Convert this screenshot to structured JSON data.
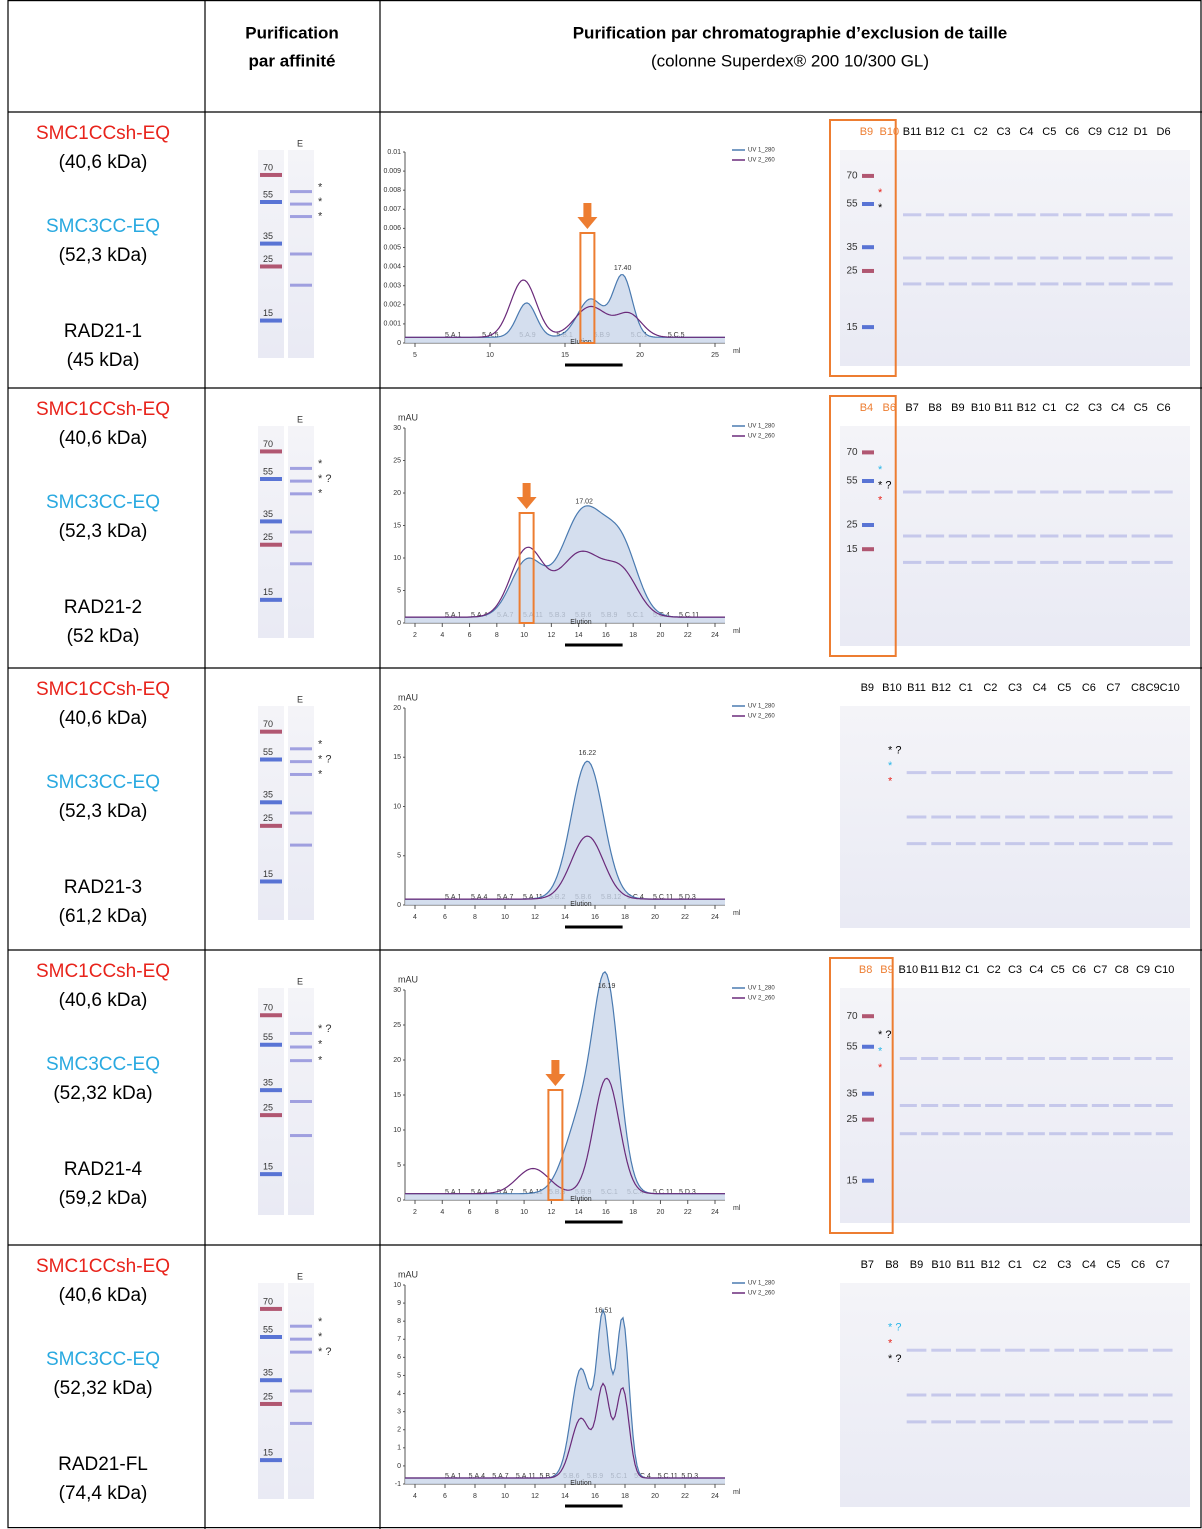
{
  "header": {
    "col2": [
      "Purification",
      "par affinité"
    ],
    "col3_title": "Purification par chromatographie d’exclusion de taille",
    "col3_subtitle": "(colonne Superdex® 200 10/300 GL)"
  },
  "rows": [
    {
      "proteins": [
        {
          "name": "SMC1CCsh-EQ",
          "kda": "(40,6 kDa)",
          "color": "#e8231b"
        },
        {
          "name": "SMC3CC-EQ",
          "kda": "(52,3 kDa)",
          "color": "#29a9e0"
        },
        {
          "name": "RAD21-1",
          "kda": "(45 kDa)",
          "color": "#000000"
        }
      ],
      "affinity": {
        "lane": "E",
        "markers": [
          "70",
          "55",
          "35",
          "25",
          "15"
        ],
        "annotations": [
          {
            "text": "*",
            "color": "#29b6e8"
          },
          {
            "text": "*",
            "color": "#e8231b"
          },
          {
            "text": "*",
            "color": "#000000"
          }
        ]
      },
      "chromatogram": {
        "yticks": [
          "0",
          "0.001",
          "0.002",
          "0.003",
          "0.004",
          "0.005",
          "0.006",
          "0.007",
          "0.008",
          "0.009",
          "0.01"
        ],
        "xticks": [
          "5",
          "10",
          "15",
          "20",
          "25"
        ],
        "xunit": "ml",
        "peak": "17.40",
        "fraction_label": "Elution",
        "fractions": [
          "5.A.1",
          "5.A.5",
          "5.A.9",
          "5.B.1",
          "5.B.9",
          "5.C.1",
          "5.C.5"
        ],
        "legend": [
          "UV 1_280",
          "UV 2_260"
        ]
      },
      "sec": {
        "lanes": [
          "B9",
          "B10",
          "B11",
          "B12",
          "C1",
          "C2",
          "C3",
          "C4",
          "C5",
          "C6",
          "C9",
          "C12",
          "D1",
          "D6"
        ],
        "selected": [
          0,
          1
        ],
        "markers": [
          "70",
          "55",
          "35",
          "25",
          "15"
        ],
        "annotations": [
          {
            "text": "*",
            "color": "#e8231b"
          },
          {
            "text": "*",
            "color": "#000000"
          }
        ]
      }
    },
    {
      "proteins": [
        {
          "name": "SMC1CCsh-EQ",
          "kda": "(40,6 kDa)",
          "color": "#e8231b"
        },
        {
          "name": "SMC3CC-EQ",
          "kda": "(52,3 kDa)",
          "color": "#29a9e0"
        },
        {
          "name": "RAD21-2",
          "kda": "(52 kDa)",
          "color": "#000000"
        }
      ],
      "affinity": {
        "lane": "E",
        "markers": [
          "70",
          "55",
          "35",
          "25",
          "15"
        ],
        "annotations": [
          {
            "text": "*",
            "color": "#29b6e8"
          },
          {
            "text": "* ?",
            "color": "#000000"
          },
          {
            "text": "*",
            "color": "#e8231b"
          }
        ]
      },
      "chromatogram": {
        "ylabel": "mAU",
        "yticks": [
          "0",
          "5",
          "10",
          "15",
          "20",
          "25",
          "30"
        ],
        "xticks": [
          "2",
          "4",
          "6",
          "8",
          "10",
          "12",
          "14",
          "16",
          "18",
          "20",
          "22",
          "24"
        ],
        "xunit": "ml",
        "peak": "17.02",
        "fraction_label": "Elution",
        "fractions": [
          "5.A.1",
          "5.A.4",
          "5.A.7",
          "5.A.11",
          "5.B.3",
          "5.B.6",
          "5.B.9",
          "5.C.1",
          "5.C.4",
          "5.C.11"
        ],
        "legend": [
          "UV 1_280",
          "UV 2_260"
        ]
      },
      "sec": {
        "lanes": [
          "B4",
          "B6",
          "B7",
          "B8",
          "B9",
          "B10",
          "B11",
          "B12",
          "C1",
          "C2",
          "C3",
          "C4",
          "C5",
          "C6"
        ],
        "selected": [
          0,
          1
        ],
        "markers": [
          "70",
          "55",
          "25",
          "15"
        ],
        "annotations": [
          {
            "text": "*",
            "color": "#29b6e8"
          },
          {
            "text": "* ?",
            "color": "#000000"
          },
          {
            "text": "*",
            "color": "#e8231b"
          }
        ]
      }
    },
    {
      "proteins": [
        {
          "name": "SMC1CCsh-EQ",
          "kda": "(40,6 kDa)",
          "color": "#e8231b"
        },
        {
          "name": "SMC3CC-EQ",
          "kda": "(52,3 kDa)",
          "color": "#29a9e0"
        },
        {
          "name": "RAD21-3",
          "kda": "(61,2 kDa)",
          "color": "#000000"
        }
      ],
      "affinity": {
        "lane": "E",
        "markers": [
          "70",
          "55",
          "35",
          "25",
          "15"
        ],
        "annotations": [
          {
            "text": "*",
            "color": "#29b6e8"
          },
          {
            "text": "* ?",
            "color": "#000000"
          },
          {
            "text": "*",
            "color": "#e8231b"
          }
        ]
      },
      "chromatogram": {
        "ylabel": "mAU",
        "yticks": [
          "0",
          "5",
          "10",
          "15",
          "20"
        ],
        "xticks": [
          "4",
          "6",
          "8",
          "10",
          "12",
          "14",
          "16",
          "18",
          "20",
          "22",
          "24"
        ],
        "xunit": "ml",
        "peak": "16.22",
        "fraction_label": "Elution",
        "fractions": [
          "5.A.1",
          "5.A.4",
          "5.A.7",
          "5.A.11",
          "5.B.2",
          "5.B.6",
          "5.B.12",
          "5.C.4",
          "5.C.11",
          "5.D.3"
        ],
        "legend": [
          "UV 1_280",
          "UV 2_260"
        ]
      },
      "sec": {
        "lanes": [
          "B9",
          "B10",
          "B11",
          "B12",
          "C1",
          "C2",
          "C3",
          "C4",
          "C5",
          "C6",
          "C7",
          "C8",
          "C9C10"
        ],
        "selected": [],
        "markers": [],
        "annotations": [
          {
            "text": "* ?",
            "color": "#000000"
          },
          {
            "text": "*",
            "color": "#29b6e8"
          },
          {
            "text": "*",
            "color": "#e8231b"
          }
        ]
      }
    },
    {
      "proteins": [
        {
          "name": "SMC1CCsh-EQ",
          "kda": "(40,6 kDa)",
          "color": "#e8231b"
        },
        {
          "name": "SMC3CC-EQ",
          "kda": "(52,32 kDa)",
          "color": "#29a9e0"
        },
        {
          "name": "RAD21-4",
          "kda": "(59,2 kDa)",
          "color": "#000000"
        }
      ],
      "affinity": {
        "lane": "E",
        "markers": [
          "70",
          "55",
          "35",
          "25",
          "15"
        ],
        "annotations": [
          {
            "text": "* ?",
            "color": "#000000"
          },
          {
            "text": "*",
            "color": "#29b6e8"
          },
          {
            "text": "*",
            "color": "#e8231b"
          }
        ]
      },
      "chromatogram": {
        "ylabel": "mAU",
        "yticks": [
          "0",
          "5",
          "10",
          "15",
          "20",
          "25",
          "30"
        ],
        "xticks": [
          "2",
          "4",
          "6",
          "8",
          "10",
          "12",
          "14",
          "16",
          "18",
          "20",
          "22",
          "24"
        ],
        "xunit": "ml",
        "peak": "16.19",
        "fraction_label": "Elution",
        "fractions": [
          "5.A.1",
          "5.A.4",
          "5.A.7",
          "5.A.11",
          "5.B.3",
          "5.B.9",
          "5.C.1",
          "5.C.4",
          "5.C.11",
          "5.D.3"
        ],
        "legend": [
          "UV 1_280",
          "UV 2_260"
        ]
      },
      "sec": {
        "lanes": [
          "B8",
          "B9",
          "B10",
          "B11",
          "B12",
          "C1",
          "C2",
          "C3",
          "C4",
          "C5",
          "C6",
          "C7",
          "C8",
          "C9",
          "C10"
        ],
        "selected": [
          0,
          1
        ],
        "markers": [
          "70",
          "55",
          "35",
          "25",
          "15"
        ],
        "annotations": [
          {
            "text": "* ?",
            "color": "#000000"
          },
          {
            "text": "*",
            "color": "#29b6e8"
          },
          {
            "text": "*",
            "color": "#e8231b"
          }
        ]
      }
    },
    {
      "proteins": [
        {
          "name": "SMC1CCsh-EQ",
          "kda": "(40,6 kDa)",
          "color": "#e8231b"
        },
        {
          "name": "SMC3CC-EQ",
          "kda": "(52,32 kDa)",
          "color": "#29a9e0"
        },
        {
          "name": "RAD21-FL",
          "kda": "(74,4 kDa)",
          "color": "#000000"
        }
      ],
      "affinity": {
        "lane": "E",
        "markers": [
          "70",
          "55",
          "35",
          "25",
          "15"
        ],
        "annotations": [
          {
            "text": "*",
            "color": "#29b6e8"
          },
          {
            "text": "*",
            "color": "#e8231b"
          },
          {
            "text": "* ?",
            "color": "#000000"
          }
        ]
      },
      "chromatogram": {
        "ylabel": "mAU",
        "yticks": [
          "-1",
          "0",
          "1",
          "2",
          "3",
          "4",
          "5",
          "6",
          "7",
          "8",
          "9",
          "10"
        ],
        "xticks": [
          "4",
          "6",
          "8",
          "10",
          "12",
          "14",
          "16",
          "18",
          "20",
          "22",
          "24"
        ],
        "xunit": "ml",
        "peak": "16.51",
        "fraction_label": "Elution",
        "fractions": [
          "5.A.1",
          "5.A.4",
          "5.A.7",
          "5.A.11",
          "5.B.3",
          "5.B.6",
          "5.B.9",
          "5.C.1",
          "5.C.4",
          "5.C.11",
          "5.D.3"
        ],
        "legend": [
          "UV 1_280",
          "UV 2_260"
        ]
      },
      "sec": {
        "lanes": [
          "B7",
          "B8",
          "B9",
          "B10",
          "B11",
          "B12",
          "C1",
          "C2",
          "C3",
          "C4",
          "C5",
          "C6",
          "C7"
        ],
        "selected": [],
        "markers": [],
        "annotations": [
          {
            "text": "* ?",
            "color": "#29b6e8"
          },
          {
            "text": "*",
            "color": "#e8231b"
          },
          {
            "text": "* ?",
            "color": "#000000"
          }
        ]
      }
    }
  ]
}
